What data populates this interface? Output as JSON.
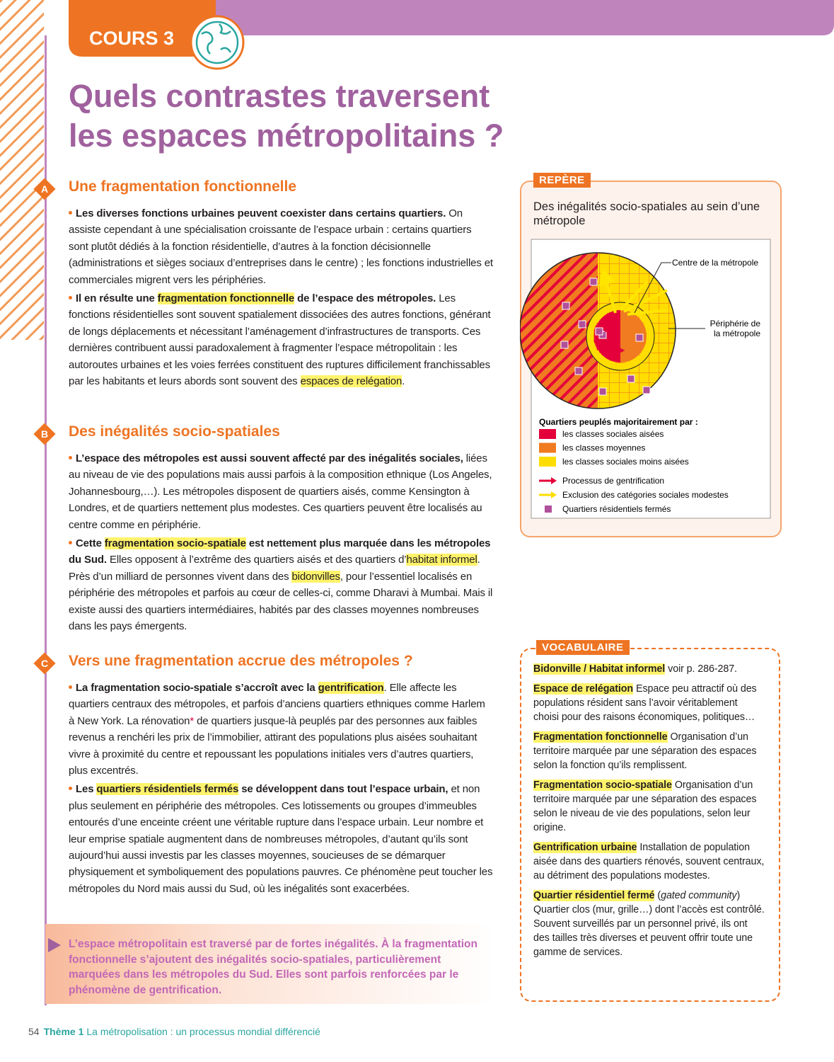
{
  "header": {
    "label": "COURS 3",
    "title_lines": [
      "Quels contrastes traversent",
      "les espaces métropolitains ?"
    ]
  },
  "sections": [
    {
      "letter": "A",
      "heading": "Une fragmentation fonctionnelle",
      "paragraphs": [
        [
          {
            "bold": "Les diverses fonctions urbaines peuvent coexister dans certains quartiers."
          },
          " On assiste cependant à une spécialisation croissante de l’espace urbain : certains quartiers sont plutôt dédiés à la fonction résidentielle, d’autres à la fonction décisionnelle (administrations et sièges sociaux d’entreprises dans le centre) ; les fonctions industrielles et commerciales migrent vers les périphéries."
        ],
        [
          {
            "bold": "Il en résulte une "
          },
          {
            "mark": "fragmentation fonctionnelle"
          },
          {
            "bold": " de l’espace des métropoles."
          },
          " Les fonctions résidentielles sont souvent spatialement dissociées des autres fonctions, générant de longs déplacements et nécessitant l’aménagement d’infrastructures de transports. Ces dernières contribuent aussi paradoxalement à fragmenter l’espace métropolitain : les autoroutes urbaines et les voies ferrées constituent des ruptures difficilement franchissables par les habitants et leurs abords sont souvent des ",
          {
            "hl": "espaces de relégation"
          },
          "."
        ]
      ]
    },
    {
      "letter": "B",
      "heading": "Des inégalités socio-spatiales",
      "paragraphs": [
        [
          {
            "bold": "L’espace des métropoles est aussi souvent affecté par des inégalités sociales,"
          },
          " liées au niveau de vie des populations mais aussi parfois à la composition ethnique (Los Angeles, Johannesbourg,…). Les métropoles disposent de quartiers aisés, comme Kensington à Londres, et de quartiers nettement plus modestes. Ces quartiers peuvent être localisés au centre comme en périphérie."
        ],
        [
          {
            "bold": "Cette "
          },
          {
            "mark": "fragmentation socio-spatiale"
          },
          {
            "bold": " est nettement plus marquée dans les métropoles du Sud."
          },
          " Elles opposent à l’extrême des quartiers aisés et des quartiers d’",
          {
            "hl": "habitat informel"
          },
          ". Près d’un milliard de personnes vivent dans des ",
          {
            "hl": "bidonvilles"
          },
          ", pour l’essentiel localisés en périphérie des métropoles et parfois au cœur de celles-ci, comme Dharavi à Mumbai. Mais il existe aussi des quartiers intermédiaires, habités par des classes moyennes nombreuses dans les pays émergents."
        ]
      ]
    },
    {
      "letter": "C",
      "heading": "Vers une fragmentation accrue des métropoles ?",
      "paragraphs": [
        [
          {
            "bold": "La fragmentation socio-spatiale s’accroît avec la "
          },
          {
            "mark": "gentrification"
          },
          ". Elle affecte les quartiers centraux des métropoles, et parfois d’anciens quartiers ethniques comme Harlem à New York. La rénovation",
          {
            "note": "*"
          },
          " de quartiers jusque-là peuplés par des personnes aux faibles revenus a renchéri les prix de l’immobilier, attirant des populations plus aisées souhaitant vivre à proximité du centre et repoussant les populations initiales vers d’autres quartiers, plus excentrés."
        ],
        [
          {
            "bold": "Les "
          },
          {
            "mark": "quartiers résidentiels fermés"
          },
          {
            "bold": " se développent dans tout l’espace urbain,"
          },
          " et non plus seulement en périphérie des métropoles. Ces lotissements ou groupes d’immeubles entourés d’une enceinte créent une véritable rupture dans l’espace urbain. Leur nombre et leur emprise spatiale augmentent dans de nombreuses métropoles, d’autant qu’ils sont aujourd’hui aussi investis par les classes moyennes, soucieuses de se démarquer physiquement et symboliquement des populations pauvres. Ce phénomène peut toucher les métropoles du Nord mais aussi du Sud, où les inégalités sont exacerbées."
        ]
      ]
    }
  ],
  "summary": "L’espace métropolitain est traversé par de fortes inégalités. À la fragmentation fonctionnelle s’ajoutent des inégalités socio-spatiales, particulièrement marquées dans les métropoles du Sud. Elles sont parfois renforcées par le phénomène de gentrification.",
  "repere": {
    "label": "REPÈRE",
    "title": "Des inégalités socio-spatiales au sein d’une métropole",
    "center_label": "Centre de la métropole",
    "periphery_label": [
      "Périphérie de",
      "la métropole"
    ],
    "legend_title": "Quartiers peuplés majoritairement par :",
    "legend": [
      {
        "label": "les classes sociales aisées",
        "color": "#e4003a"
      },
      {
        "label": "les classes moyennes",
        "color": "#f07b20"
      },
      {
        "label": "les classes sociales moins aisées",
        "color": "#ffdd00"
      }
    ],
    "symbols": [
      {
        "label": "Processus de gentrification",
        "color": "#e4003a"
      },
      {
        "label": "Exclusion des catégories sociales modestes",
        "color": "#ffdd00"
      },
      {
        "label": "Quartiers résidentiels fermés",
        "color": "#b0509a"
      }
    ]
  },
  "vocabulary": {
    "label": "VOCABULAIRE",
    "entries": [
      {
        "term": "Bidonville / Habitat informel",
        "text": "voir p. 286-287."
      },
      {
        "term": "Espace de relégation",
        "text": "Espace peu attractif où des populations résident sans l’avoir véritablement choisi pour des raisons économiques, politiques…"
      },
      {
        "term": "Fragmentation fonctionnelle",
        "text": "Organisation d’un territoire marquée par une séparation des espaces selon la fonction qu’ils remplissent."
      },
      {
        "term": "Fragmentation socio-spatiale",
        "text": "Organisation d’un territoire marquée par une séparation des espaces selon le niveau de vie des populations, selon leur origine."
      },
      {
        "term": "Gentrification urbaine",
        "text": "Installation de population aisée dans des quartiers rénovés, souvent centraux, au détriment des populations modestes."
      },
      {
        "term": "Quartier résidentiel fermé",
        "text": [
          "(",
          {
            "it": "gated community"
          },
          ") Quartier clos (mur, grille…) dont l’accès est contrôlé. Souvent surveillés par un personnel privé, ils ont des tailles très diverses et peuvent offrir toute une gamme de services."
        ]
      }
    ]
  },
  "footer": {
    "page": "54",
    "theme": "Thème 1",
    "subtitle": "La métropolisation : un processus mondial différencié"
  }
}
